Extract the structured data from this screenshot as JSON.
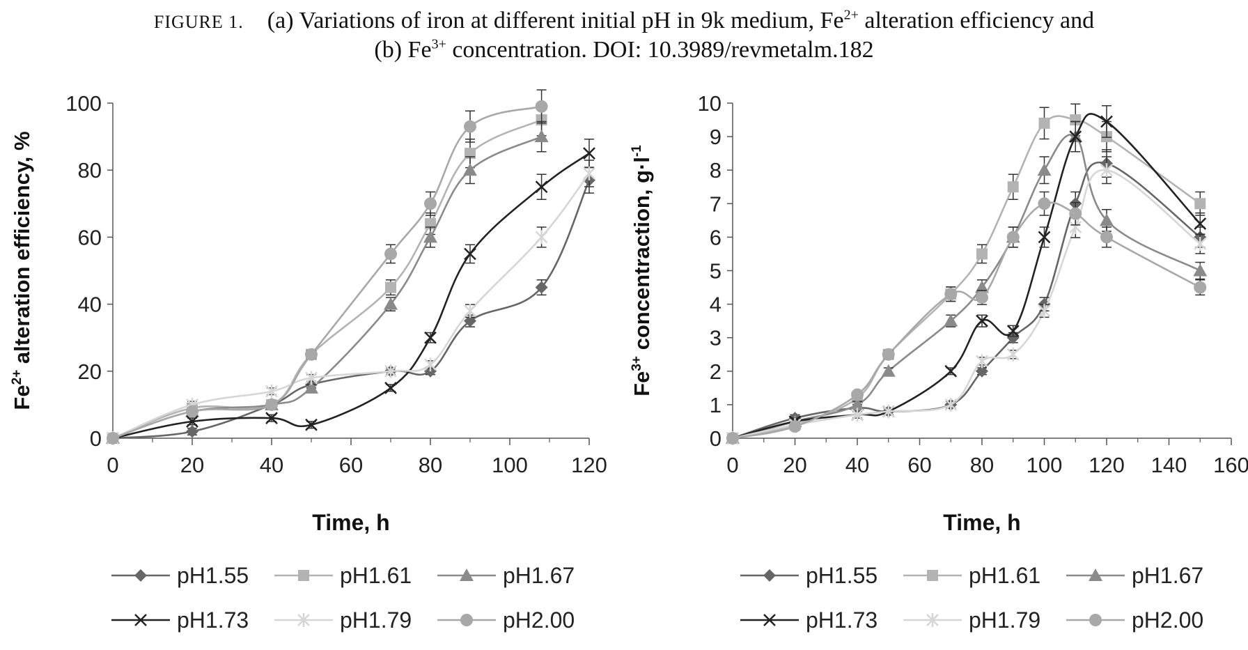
{
  "caption": {
    "figure_label": "FIGURE 1.",
    "line1_part1": "(a) Variations of iron at different initial pH in 9k medium, Fe",
    "line1_sup": "2+",
    "line1_part2": " alteration efficiency and",
    "line2_part1": "(b) Fe",
    "line2_sup": "3+",
    "line2_part2": " concentration. DOI: 10.3989/revmetalm.182"
  },
  "colors": {
    "pH1.55": "#666666",
    "pH1.61": "#b3b3b3",
    "pH1.67": "#8a8a8a",
    "pH1.73": "#222222",
    "pH1.79": "#d6d6d6",
    "pH2.00": "#a8a8a8"
  },
  "chart_data": [
    {
      "type": "line",
      "panel": "a",
      "ylabel_parts": [
        "Fe",
        "2+",
        " alteration efficiency, %"
      ],
      "xlabel": "Time, h",
      "xlim": [
        0,
        120
      ],
      "ylim": [
        0,
        100
      ],
      "xticks": [
        0,
        20,
        40,
        60,
        80,
        100,
        120
      ],
      "yticks": [
        0,
        20,
        40,
        60,
        80,
        100
      ],
      "grid": false,
      "legend_position": "bottom",
      "series": [
        {
          "name": "pH1.55",
          "marker": "diamond",
          "x": [
            0,
            20,
            40,
            50,
            70,
            80,
            90,
            108,
            120
          ],
          "y": [
            0,
            2,
            10,
            16,
            20,
            20,
            35,
            45,
            77
          ]
        },
        {
          "name": "pH1.61",
          "marker": "square",
          "x": [
            0,
            20,
            40,
            50,
            70,
            80,
            90,
            108
          ],
          "y": [
            0,
            9,
            10,
            25,
            45,
            64,
            85,
            95
          ]
        },
        {
          "name": "pH1.67",
          "marker": "triangle",
          "x": [
            0,
            20,
            40,
            50,
            70,
            80,
            90,
            108
          ],
          "y": [
            0,
            8,
            10,
            15,
            40,
            60,
            80,
            90
          ]
        },
        {
          "name": "pH1.73",
          "marker": "x",
          "x": [
            0,
            20,
            40,
            50,
            70,
            80,
            90,
            108,
            120
          ],
          "y": [
            0,
            5,
            6,
            4,
            15,
            30,
            55,
            75,
            85
          ]
        },
        {
          "name": "pH1.79",
          "marker": "star",
          "x": [
            0,
            20,
            40,
            50,
            70,
            80,
            90,
            108,
            120
          ],
          "y": [
            0,
            10,
            14,
            18,
            20,
            22,
            38,
            60,
            79
          ]
        },
        {
          "name": "pH2.00",
          "marker": "circle",
          "x": [
            0,
            20,
            40,
            50,
            70,
            80,
            90,
            108
          ],
          "y": [
            0,
            8,
            10,
            25,
            55,
            70,
            93,
            99
          ]
        }
      ]
    },
    {
      "type": "line",
      "panel": "b",
      "ylabel_parts": [
        "Fe",
        "3+",
        " concentraction, g·l",
        "-1"
      ],
      "xlabel": "Time, h",
      "xlim": [
        0,
        160
      ],
      "ylim": [
        0,
        10
      ],
      "xticks": [
        0,
        20,
        40,
        60,
        80,
        100,
        120,
        140,
        160
      ],
      "yticks": [
        0,
        1,
        2,
        3,
        4,
        5,
        6,
        7,
        8,
        9,
        10
      ],
      "grid": false,
      "legend_position": "bottom",
      "series": [
        {
          "name": "pH1.55",
          "marker": "diamond",
          "x": [
            0,
            20,
            40,
            50,
            70,
            80,
            90,
            100,
            110,
            120,
            150
          ],
          "y": [
            0,
            0.6,
            0.9,
            0.8,
            1.0,
            2.0,
            3.0,
            4.0,
            7.0,
            8.2,
            6.0
          ]
        },
        {
          "name": "pH1.61",
          "marker": "square",
          "x": [
            0,
            20,
            40,
            50,
            70,
            80,
            90,
            100,
            110,
            120,
            150
          ],
          "y": [
            0,
            0.4,
            1.2,
            2.5,
            4.3,
            5.5,
            7.5,
            9.4,
            9.5,
            9.0,
            7.0
          ]
        },
        {
          "name": "pH1.67",
          "marker": "triangle",
          "x": [
            0,
            20,
            40,
            50,
            70,
            80,
            90,
            100,
            110,
            120,
            150
          ],
          "y": [
            0,
            0.5,
            1.0,
            2.0,
            3.5,
            4.5,
            6.0,
            8.0,
            9.0,
            6.5,
            5.0
          ]
        },
        {
          "name": "pH1.73",
          "marker": "x",
          "x": [
            0,
            20,
            40,
            50,
            70,
            80,
            90,
            100,
            110,
            120,
            150
          ],
          "y": [
            0,
            0.5,
            0.7,
            0.8,
            2.0,
            3.5,
            3.2,
            6.0,
            9.0,
            9.45,
            6.4
          ]
        },
        {
          "name": "pH1.79",
          "marker": "star",
          "x": [
            0,
            20,
            40,
            50,
            70,
            80,
            90,
            100,
            110,
            120,
            150
          ],
          "y": [
            0,
            0.4,
            0.7,
            0.8,
            1.0,
            2.3,
            2.5,
            3.8,
            6.3,
            8.0,
            5.8
          ]
        },
        {
          "name": "pH2.00",
          "marker": "circle",
          "x": [
            0,
            20,
            40,
            50,
            70,
            80,
            90,
            100,
            110,
            120,
            150
          ],
          "y": [
            0,
            0.35,
            1.3,
            2.5,
            4.3,
            4.2,
            6.0,
            7.0,
            6.7,
            6.0,
            4.5
          ]
        }
      ]
    }
  ]
}
